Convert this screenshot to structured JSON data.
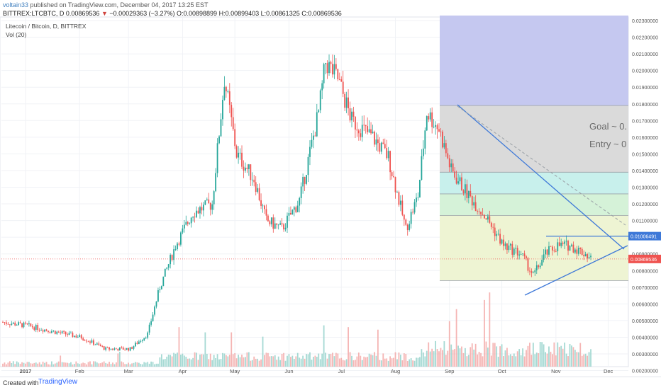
{
  "header": {
    "user": "voltain33",
    "published": "published on TradingView.com, December 04, 2017 13:25 EST",
    "symbol": "BITTREX:LTCBTC, D",
    "last": "0.00869536",
    "change_arrow": "▼",
    "change": "−0.00029363 (−3.27%)",
    "o_label": "O:",
    "o": "0.00898899",
    "h_label": "H:",
    "h": "0.00899403",
    "l_label": "L:",
    "l": "0.00861325",
    "c_label": "C:",
    "c": "0.00869536"
  },
  "legend": {
    "title": "Litecoin / Bitcoin, D, BITTREX",
    "volume": "Vol (20)"
  },
  "annotations": {
    "goal": "Goal ~ 0.",
    "entry": "Entry ~ 0"
  },
  "price_labels": {
    "resistance": "0.01006491",
    "current": "0.00869536"
  },
  "footer": {
    "created_with": "Created with",
    "brand": "TradingView"
  },
  "colors": {
    "up": "#26a69a",
    "down": "#ef5350",
    "trendline": "#3d78d8",
    "box_purple": "#c5c8f0",
    "box_gray": "#dadada",
    "box_cyan": "#c8f0ec",
    "box_green": "#d5f2d8",
    "box_yellow": "#eef4d3",
    "current_line": "#ef5350"
  },
  "chart_data": {
    "type": "candlestick",
    "title": "Litecoin / Bitcoin, D, BITTREX",
    "x_ticks": [
      "2017",
      "Feb",
      "Mar",
      "Apr",
      "May",
      "Jun",
      "Jul",
      "Aug",
      "Sep",
      "Oct",
      "Nov",
      "Dec"
    ],
    "y_ticks": [
      "0.02300000",
      "0.02200000",
      "0.02100000",
      "0.02000000",
      "0.01900000",
      "0.01800000",
      "0.01700000",
      "0.01600000",
      "0.01500000",
      "0.01400000",
      "0.01300000",
      "0.01200000",
      "0.01100000",
      "0.01000000",
      "0.00900000",
      "0.00800000",
      "0.00700000",
      "0.00600000",
      "0.00500000",
      "0.00400000",
      "0.00300000",
      "0.00200000"
    ],
    "ylim": [
      0.0019,
      0.0233
    ],
    "close_series_approx": [
      [
        "2017-01-01",
        0.0049
      ],
      [
        "2017-01-15",
        0.0047
      ],
      [
        "2017-02-01",
        0.0043
      ],
      [
        "2017-02-15",
        0.004
      ],
      [
        "2017-03-01",
        0.0033
      ],
      [
        "2017-03-15",
        0.0033
      ],
      [
        "2017-03-25",
        0.0042
      ],
      [
        "2017-04-01",
        0.007
      ],
      [
        "2017-04-10",
        0.0095
      ],
      [
        "2017-04-20",
        0.0115
      ],
      [
        "2017-05-01",
        0.012
      ],
      [
        "2017-05-08",
        0.0195
      ],
      [
        "2017-05-15",
        0.015
      ],
      [
        "2017-05-25",
        0.0135
      ],
      [
        "2017-06-01",
        0.011
      ],
      [
        "2017-06-10",
        0.0105
      ],
      [
        "2017-06-20",
        0.0122
      ],
      [
        "2017-07-01",
        0.0175
      ],
      [
        "2017-07-05",
        0.0205
      ],
      [
        "2017-07-12",
        0.0195
      ],
      [
        "2017-07-20",
        0.017
      ],
      [
        "2017-08-01",
        0.016
      ],
      [
        "2017-08-10",
        0.0148
      ],
      [
        "2017-08-20",
        0.0105
      ],
      [
        "2017-08-27",
        0.0125
      ],
      [
        "2017-09-01",
        0.0175
      ],
      [
        "2017-09-08",
        0.0165
      ],
      [
        "2017-09-15",
        0.014
      ],
      [
        "2017-09-25",
        0.0125
      ],
      [
        "2017-10-05",
        0.0112
      ],
      [
        "2017-10-15",
        0.0095
      ],
      [
        "2017-10-25",
        0.009
      ],
      [
        "2017-11-01",
        0.0077
      ],
      [
        "2017-11-08",
        0.009
      ],
      [
        "2017-11-15",
        0.0095
      ],
      [
        "2017-11-22",
        0.0095
      ],
      [
        "2017-12-01",
        0.009
      ],
      [
        "2017-12-04",
        0.0087
      ]
    ],
    "levels": {
      "box_top": 0.0179,
      "box_upper": 0.0139,
      "box_mid": 0.0126,
      "box_lower": 0.0113,
      "box_bottom": 0.0074,
      "resistance": 0.01006491,
      "current": 0.00869536
    }
  }
}
